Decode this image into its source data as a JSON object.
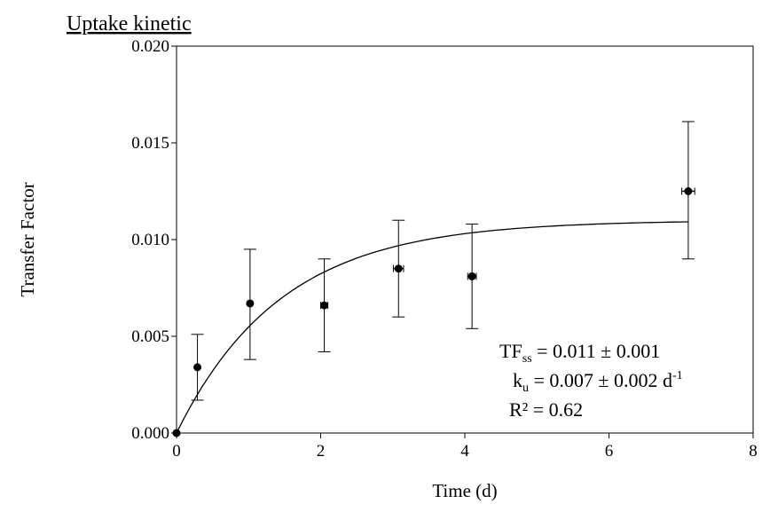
{
  "chart_data": {
    "type": "scatter",
    "title": "Uptake kinetic",
    "xlabel": "Time (d)",
    "ylabel": "Transfer Factor",
    "xlim": [
      0,
      8
    ],
    "ylim": [
      0,
      0.02
    ],
    "xticks": [
      "0",
      "2",
      "4",
      "6",
      "8"
    ],
    "yticks": [
      "0.000",
      "0.005",
      "0.010",
      "0.015",
      "0.020"
    ],
    "grid": false,
    "points": [
      {
        "x": 0.0,
        "y": 0.0,
        "yerr_low": 0.0,
        "yerr_high": 0.0,
        "xerr": 0.0
      },
      {
        "x": 0.29,
        "y": 0.0034,
        "yerr_low": 0.0017,
        "yerr_high": 0.0051,
        "xerr": 0.0
      },
      {
        "x": 1.02,
        "y": 0.0067,
        "yerr_low": 0.0038,
        "yerr_high": 0.0095,
        "xerr": 0.0
      },
      {
        "x": 2.05,
        "y": 0.0066,
        "yerr_low": 0.0042,
        "yerr_high": 0.009,
        "xerr": 0.05
      },
      {
        "x": 3.08,
        "y": 0.0085,
        "yerr_low": 0.006,
        "yerr_high": 0.011,
        "xerr": 0.07
      },
      {
        "x": 4.1,
        "y": 0.0081,
        "yerr_low": 0.0054,
        "yerr_high": 0.0108,
        "xerr": 0.06
      },
      {
        "x": 7.1,
        "y": 0.0125,
        "yerr_low": 0.009,
        "yerr_high": 0.0161,
        "xerr": 0.09
      }
    ],
    "fit": {
      "TFss": 0.011,
      "ku": 0.007,
      "curve": "TFss*(1-exp(-k*t))",
      "x_end": 7.1
    },
    "annotations": {
      "tf_main": "TF",
      "tf_sub": "ss",
      "tf_rest": " = 0.011 ± 0.001",
      "k_main": "k",
      "k_sub": "u",
      "k_rest": "  = 0.007 ± 0.002 d",
      "k_sup": "-1",
      "r2": "R² = 0.62"
    }
  }
}
